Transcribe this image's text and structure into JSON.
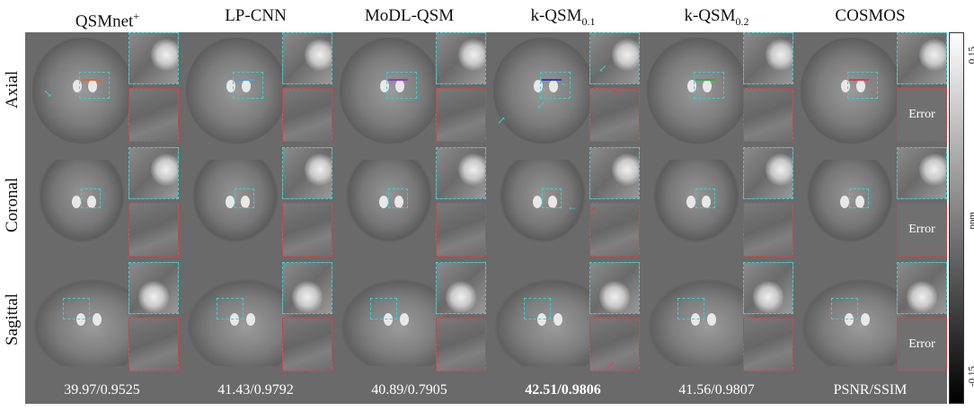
{
  "columns": [
    {
      "name": "QSMnet",
      "sup": "+",
      "sub": "",
      "metric": "39.97/0.9525",
      "bold": false,
      "line": "#e06a2b"
    },
    {
      "name": "LP-CNN",
      "sup": "",
      "sub": "",
      "metric": "41.43/0.9792",
      "bold": false,
      "line": "#4aa0e0"
    },
    {
      "name": "MoDL-QSM",
      "sup": "",
      "sub": "",
      "metric": "40.89/0.7905",
      "bold": false,
      "line": "#8a3fd0"
    },
    {
      "name": "k-QSM",
      "sup": "",
      "sub": "0.1",
      "metric": "42.51/0.9806",
      "bold": true,
      "line": "#2a3fd0"
    },
    {
      "name": "k-QSM",
      "sup": "",
      "sub": "0.2",
      "metric": "41.56/0.9807",
      "bold": false,
      "line": "#2ab04a"
    },
    {
      "name": "COSMOS",
      "sup": "",
      "sub": "",
      "metric": "PSNR/SSIM",
      "bold": false,
      "line": "#e03a5a"
    }
  ],
  "rows": [
    "Axial",
    "Coronal",
    "Sagittal"
  ],
  "error_label": "Error",
  "colorbar": {
    "top": "0.15",
    "bottom": "-0.15",
    "unit": "ppm"
  }
}
